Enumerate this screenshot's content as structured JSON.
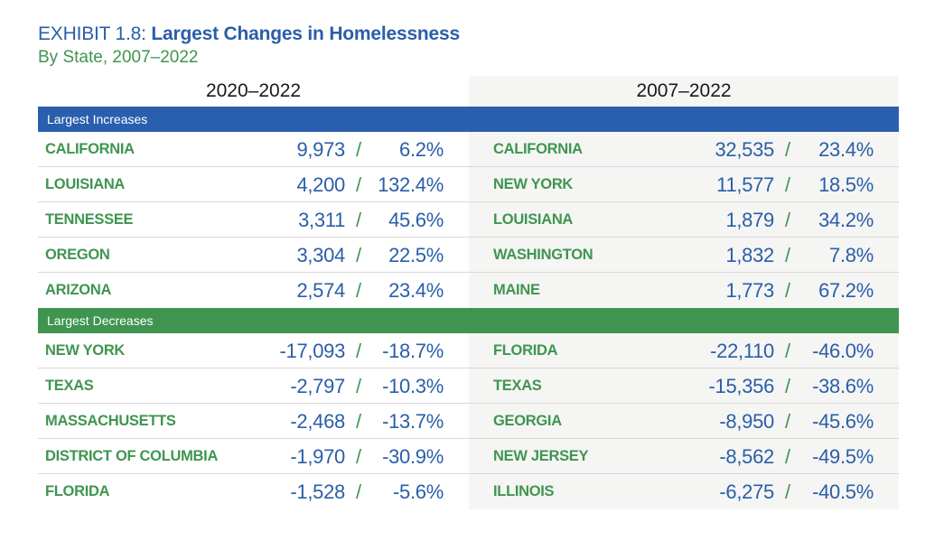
{
  "header": {
    "exhibit_label": "EXHIBIT 1.8: ",
    "title": "Largest Changes in Homelessness",
    "subtitle": "By State, 2007–2022"
  },
  "colors": {
    "blue": "#2a5fae",
    "green": "#3f9550",
    "right_panel_bg": "#f5f5f4"
  },
  "columns": {
    "left": "2020–2022",
    "right": "2007–2022"
  },
  "separator": "/",
  "increases": {
    "label": "Largest Increases",
    "left": [
      {
        "state": "CALIFORNIA",
        "count": "9,973",
        "pct": "6.2%"
      },
      {
        "state": "LOUISIANA",
        "count": "4,200",
        "pct": "132.4%"
      },
      {
        "state": "TENNESSEE",
        "count": "3,311",
        "pct": "45.6%"
      },
      {
        "state": "OREGON",
        "count": "3,304",
        "pct": "22.5%"
      },
      {
        "state": "ARIZONA",
        "count": "2,574",
        "pct": "23.4%"
      }
    ],
    "right": [
      {
        "state": "CALIFORNIA",
        "count": "32,535",
        "pct": "23.4%"
      },
      {
        "state": "NEW YORK",
        "count": "11,577",
        "pct": "18.5%"
      },
      {
        "state": "LOUISIANA",
        "count": "1,879",
        "pct": "34.2%"
      },
      {
        "state": "WASHINGTON",
        "count": "1,832",
        "pct": "7.8%"
      },
      {
        "state": "MAINE",
        "count": "1,773",
        "pct": "67.2%"
      }
    ]
  },
  "decreases": {
    "label": "Largest Decreases",
    "left": [
      {
        "state": "NEW YORK",
        "count": "-17,093",
        "pct": "-18.7%"
      },
      {
        "state": "TEXAS",
        "count": "-2,797",
        "pct": "-10.3%"
      },
      {
        "state": "MASSACHUSETTS",
        "count": "-2,468",
        "pct": "-13.7%"
      },
      {
        "state": "DISTRICT OF COLUMBIA",
        "count": "-1,970",
        "pct": "-30.9%"
      },
      {
        "state": "FLORIDA",
        "count": "-1,528",
        "pct": "-5.6%"
      }
    ],
    "right": [
      {
        "state": "FLORIDA",
        "count": "-22,110",
        "pct": "-46.0%"
      },
      {
        "state": "TEXAS",
        "count": "-15,356",
        "pct": "-38.6%"
      },
      {
        "state": "GEORGIA",
        "count": "-8,950",
        "pct": "-45.6%"
      },
      {
        "state": "NEW JERSEY",
        "count": "-8,562",
        "pct": "-49.5%"
      },
      {
        "state": "ILLINOIS",
        "count": "-6,275",
        "pct": "-40.5%"
      }
    ]
  }
}
